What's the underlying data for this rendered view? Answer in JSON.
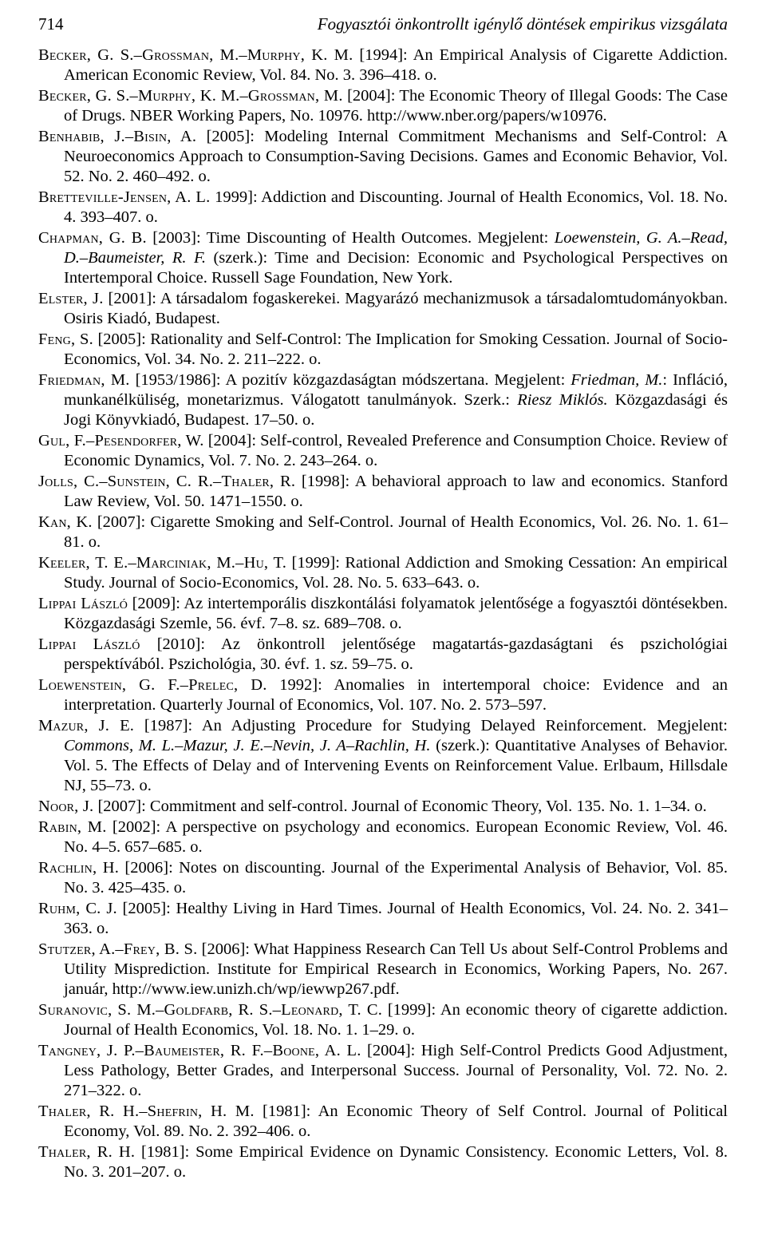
{
  "header": {
    "page_number": "714",
    "running_title": "Fogyasztói önkontrollt igénylő döntések empirikus vizsgálata"
  },
  "references": [
    "<span class='sc'>Becker, G. S.–Grossman, M.–Murphy, K. M.</span> [1994]: An Empirical Analysis of Cigarette Addiction. American Economic Review, Vol. 84. No. 3. 396–418. o.",
    "<span class='sc'>Becker, G. S.–Murphy, K. M.–Grossman, M.</span> [2004]: The Economic Theory of Illegal Goods: The Case of Drugs. NBER Working Papers, No. 10976. http://www.nber.org/papers/w10976.",
    "<span class='sc'>Benhabib, J.–Bisin, A.</span> [2005]: Modeling Internal Commitment Mechanisms and Self-Control: A Neuroeconomics Approach to Consumption-Saving Decisions. Games and Economic Behavior, Vol. 52. No. 2. 460–492. o.",
    "<span class='sc'>Bretteville-Jensen, A. L.</span> 1999]: Addiction and Discounting. Journal of Health Economics, Vol. 18. No. 4. 393–407. o.",
    "<span class='sc'>Chapman, G. B.</span> [2003]: Time Discounting of Health Outcomes. Megjelent: <span class='it'>Loewenstein, G. A.–Read, D.–Baumeister, R. F.</span> (szerk.): Time and Decision: Economic and Psychological Perspectives on Intertemporal Choice. Russell Sage Foundation, New York.",
    "<span class='sc'>Elster, J.</span> [2001]: A társadalom fogaskerekei. Magyarázó mechanizmusok a társadalomtudományokban. Osiris Kiadó, Budapest.",
    "<span class='sc'>Feng, S.</span> [2005]: Rationality and Self-Control: The Implication for Smoking Cessation. Journal of Socio-Economics, Vol. 34. No. 2. 211–222. o.",
    "<span class='sc'>Friedman, M.</span> [1953/1986]: A pozitív közgazdaságtan módszertana. Megjelent: <span class='it'>Friedman, M.</span>: Infláció, munkanélküliség, monetarizmus. Válogatott tanulmányok. Szerk.: <span class='it'>Riesz Miklós.</span> Közgazdasági és Jogi Könyvkiadó, Budapest. 17–50. o.",
    "<span class='sc'>Gul, F.–Pesendorfer, W.</span> [2004]: Self-control, Revealed Preference and Consumption Choice. Review of Economic Dynamics, Vol. 7. No. 2. 243–264. o.",
    "<span class='sc'>Jolls, C.–Sunstein, C. R.–Thaler, R.</span> [1998]: A behavioral approach to law and economics. Stanford Law Review, Vol. 50. 1471–1550. o.",
    "<span class='sc'>Kan, K.</span> [2007]: Cigarette Smoking and Self-Control. Journal of Health Economics, Vol. 26. No. 1. 61–81. o.",
    "<span class='sc'>Keeler, T. E.–Marciniak, M.–Hu, T.</span> [1999]: Rational Addiction and Smoking Cessation: An empirical Study. Journal of Socio-Economics, Vol. 28. No. 5. 633–643. o.",
    "<span class='sc'>Lippai László</span> [2009]: Az intertemporális diszkontálási folyamatok jelentősége a fogyasztói döntésekben. Közgazdasági Szemle, 56. évf. 7–8. sz. 689–708. o.",
    "<span class='sc'>Lippai László</span> [2010]: Az önkontroll jelentősége magatartás-gazdaságtani és pszichológiai perspektívából. Pszichológia, 30. évf. 1. sz. 59–75. o.",
    "<span class='sc'>Loewenstein, G. F.–Prelec, D.</span> 1992]: Anomalies in intertemporal choice: Evidence and an interpretation. Quarterly Journal of Economics, Vol. 107. No. 2. 573–597.",
    "<span class='sc'>Mazur, J. E.</span> [1987]: An Adjusting Procedure for Studying Delayed Reinforcement. Megjelent: <span class='it'>Commons, M. L.–Mazur, J. E.–Nevin, J. A–Rachlin, H.</span> (szerk.): Quantitative Analyses of Behavior. Vol. 5. The Effects of Delay and of Intervening Events on Reinforcement Value. Erlbaum, Hillsdale NJ, 55–73. o.",
    "<span class='sc'>Noor, J.</span> [2007]: Commitment and self-control. Journal of Economic Theory, Vol. 135. No. 1. 1–34. o.",
    "<span class='sc'>Rabin, M.</span> [2002]: A perspective on psychology and economics. European Economic Review, Vol. 46. No. 4–5. 657–685. o.",
    "<span class='sc'>Rachlin, H.</span> [2006]: Notes on discounting. Journal of the Experimental Analysis of Behavior, Vol. 85. No. 3. 425–435. o.",
    "<span class='sc'>Ruhm, C. J.</span> [2005]: Healthy Living in Hard Times. Journal of Health Economics, Vol. 24. No. 2. 341–363. o.",
    "<span class='sc'>Stutzer, A.–Frey, B. S.</span> [2006]: What Happiness Research Can Tell Us about Self-Control Problems and Utility Misprediction. Institute for Empirical Research in Economics, Working Papers, No. 267. január, http://www.iew.unizh.ch/wp/iewwp267.pdf.",
    "<span class='sc'>Suranovic, S. M.–Goldfarb, R. S.–Leonard, T. C.</span> [1999]: An economic theory of cigarette addiction. Journal of Health Economics, Vol. 18. No. 1. 1–29. o.",
    "<span class='sc'>Tangney, J. P.–Baumeister, R. F.–Boone, A. L.</span> [2004]: High Self-Control Predicts Good Adjustment, Less Pathology, Better Grades, and Interpersonal Success. Journal of Personality, Vol. 72. No. 2. 271–322. o.",
    "<span class='sc'>Thaler, R. H.–Shefrin, H. M.</span> [1981]: An Economic Theory of Self Control. Journal of Political Economy, Vol. 89. No. 2. 392–406. o.",
    "<span class='sc'>Thaler, R. H.</span> [1981]: Some Empirical Evidence on Dynamic Consistency. Economic Letters, Vol. 8. No. 3. 201–207. o."
  ]
}
